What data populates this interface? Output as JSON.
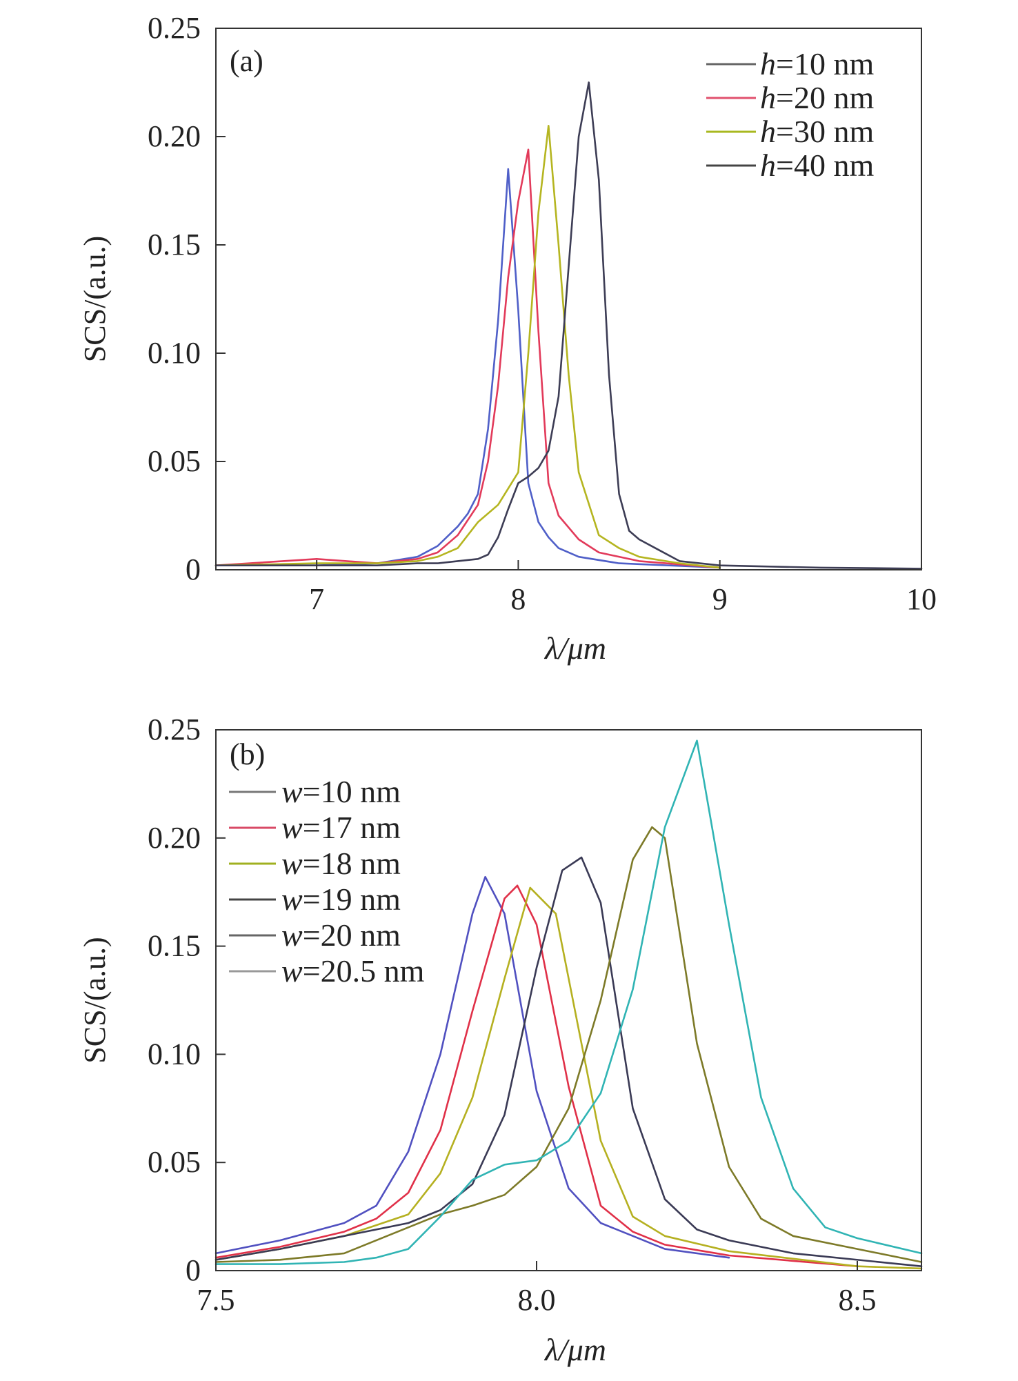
{
  "chart_data": [
    {
      "type": "line",
      "panel_label": "(a)",
      "xlabel": "λ/μm",
      "ylabel": "SCS/(a.u.)",
      "xlim": [
        6.5,
        10
      ],
      "ylim": [
        0,
        0.25
      ],
      "xticks": [
        7,
        8,
        9,
        10
      ],
      "xtick_labels": [
        "7",
        "8",
        "9",
        "10"
      ],
      "yticks": [
        0,
        0.05,
        0.1,
        0.15,
        0.2,
        0.25
      ],
      "ytick_labels": [
        "0",
        "0.05",
        "0.10",
        "0.15",
        "0.20",
        "0.25"
      ],
      "legend_position": "top-right",
      "series": [
        {
          "name": "h=10 nm",
          "legend_var": "h",
          "legend_rest": "=10 nm",
          "color": "#4f5fc8",
          "legend_color": "#666666",
          "x": [
            6.5,
            7.0,
            7.3,
            7.5,
            7.6,
            7.7,
            7.75,
            7.8,
            7.85,
            7.9,
            7.95,
            8.0,
            8.05,
            8.1,
            8.15,
            8.2,
            8.3,
            8.5,
            9.0
          ],
          "y": [
            0.002,
            0.002,
            0.003,
            0.006,
            0.011,
            0.02,
            0.026,
            0.035,
            0.065,
            0.115,
            0.185,
            0.12,
            0.04,
            0.022,
            0.015,
            0.01,
            0.006,
            0.003,
            0.001
          ]
        },
        {
          "name": "h=20 nm",
          "legend_var": "h",
          "legend_rest": "=20 nm",
          "color": "#e23a5a",
          "legend_color": "#e0506e",
          "x": [
            6.5,
            7.0,
            7.3,
            7.5,
            7.6,
            7.7,
            7.8,
            7.85,
            7.9,
            7.95,
            8.0,
            8.05,
            8.1,
            8.15,
            8.2,
            8.3,
            8.4,
            8.6,
            9.0
          ],
          "y": [
            0.002,
            0.005,
            0.003,
            0.005,
            0.008,
            0.016,
            0.03,
            0.05,
            0.085,
            0.135,
            0.17,
            0.194,
            0.11,
            0.04,
            0.025,
            0.014,
            0.008,
            0.004,
            0.001
          ]
        },
        {
          "name": "h=30 nm",
          "legend_var": "h",
          "legend_rest": "=30 nm",
          "color": "#b5b520",
          "legend_color": "#a8b820",
          "x": [
            6.5,
            7.0,
            7.3,
            7.5,
            7.6,
            7.7,
            7.8,
            7.9,
            8.0,
            8.05,
            8.1,
            8.15,
            8.2,
            8.25,
            8.3,
            8.4,
            8.5,
            8.6,
            8.8,
            9.0
          ],
          "y": [
            0.002,
            0.003,
            0.003,
            0.004,
            0.006,
            0.01,
            0.022,
            0.03,
            0.045,
            0.1,
            0.165,
            0.205,
            0.15,
            0.09,
            0.045,
            0.016,
            0.01,
            0.006,
            0.003,
            0.001
          ]
        },
        {
          "name": "h=40 nm",
          "legend_var": "h",
          "legend_rest": "=40 nm",
          "color": "#3d3d55",
          "legend_color": "#444444",
          "x": [
            6.5,
            7.0,
            7.3,
            7.5,
            7.6,
            7.7,
            7.8,
            7.85,
            7.9,
            7.95,
            8.0,
            8.05,
            8.1,
            8.15,
            8.2,
            8.25,
            8.3,
            8.35,
            8.4,
            8.45,
            8.5,
            8.55,
            8.6,
            8.7,
            8.8,
            9.0,
            9.5,
            10.0
          ],
          "y": [
            0.002,
            0.002,
            0.002,
            0.003,
            0.003,
            0.004,
            0.005,
            0.007,
            0.015,
            0.028,
            0.04,
            0.043,
            0.047,
            0.055,
            0.08,
            0.14,
            0.2,
            0.225,
            0.18,
            0.09,
            0.035,
            0.018,
            0.014,
            0.009,
            0.004,
            0.002,
            0.001,
            0.0005
          ]
        }
      ]
    },
    {
      "type": "line",
      "panel_label": "(b)",
      "xlabel": "λ/μm",
      "ylabel": "SCS/(a.u.)",
      "xlim": [
        7.5,
        8.6
      ],
      "ylim": [
        0,
        0.25
      ],
      "xticks": [
        7.5,
        8.0,
        8.5
      ],
      "xtick_labels": [
        "7.5",
        "8.0",
        "8.5"
      ],
      "yticks": [
        0,
        0.05,
        0.1,
        0.15,
        0.2,
        0.25
      ],
      "ytick_labels": [
        "0",
        "0.05",
        "0.10",
        "0.15",
        "0.20",
        "0.25"
      ],
      "legend_position": "top-left",
      "series": [
        {
          "name": "w=10 nm",
          "legend_var": "w",
          "legend_rest": "=10 nm",
          "color": "#5050c0",
          "legend_color": "#777777",
          "x": [
            7.5,
            7.6,
            7.7,
            7.75,
            7.8,
            7.85,
            7.9,
            7.92,
            7.95,
            8.0,
            8.05,
            8.1,
            8.2,
            8.3
          ],
          "y": [
            0.008,
            0.014,
            0.022,
            0.03,
            0.055,
            0.1,
            0.165,
            0.182,
            0.165,
            0.083,
            0.038,
            0.022,
            0.01,
            0.006
          ]
        },
        {
          "name": "w=17 nm",
          "legend_var": "w",
          "legend_rest": "=17 nm",
          "color": "#e03048",
          "legend_color": "#d84a66",
          "x": [
            7.5,
            7.6,
            7.7,
            7.75,
            7.8,
            7.85,
            7.9,
            7.95,
            7.97,
            8.0,
            8.05,
            8.1,
            8.15,
            8.2,
            8.3,
            8.5
          ],
          "y": [
            0.006,
            0.011,
            0.018,
            0.024,
            0.036,
            0.065,
            0.12,
            0.172,
            0.178,
            0.16,
            0.085,
            0.03,
            0.018,
            0.012,
            0.007,
            0.002
          ]
        },
        {
          "name": "w=18 nm",
          "legend_var": "w",
          "legend_rest": "=18 nm",
          "color": "#b5b020",
          "legend_color": "#a0b020",
          "x": [
            7.5,
            7.6,
            7.7,
            7.8,
            7.85,
            7.9,
            7.95,
            7.99,
            8.03,
            8.07,
            8.1,
            8.15,
            8.2,
            8.3,
            8.5,
            8.6
          ],
          "y": [
            0.005,
            0.01,
            0.016,
            0.026,
            0.045,
            0.08,
            0.135,
            0.177,
            0.165,
            0.105,
            0.06,
            0.025,
            0.016,
            0.009,
            0.002,
            0.001
          ]
        },
        {
          "name": "w=19 nm",
          "legend_var": "w",
          "legend_rest": "=19 nm",
          "color": "#3a3a55",
          "legend_color": "#444444",
          "x": [
            7.5,
            7.6,
            7.7,
            7.8,
            7.85,
            7.9,
            7.95,
            8.0,
            8.04,
            8.07,
            8.1,
            8.15,
            8.2,
            8.25,
            8.3,
            8.4,
            8.6
          ],
          "y": [
            0.005,
            0.01,
            0.016,
            0.022,
            0.028,
            0.04,
            0.072,
            0.14,
            0.185,
            0.191,
            0.17,
            0.075,
            0.033,
            0.019,
            0.014,
            0.008,
            0.002
          ]
        },
        {
          "name": "w=20 nm",
          "legend_var": "w",
          "legend_rest": "=20 nm",
          "color": "#7d7a28",
          "legend_color": "#666666",
          "x": [
            7.5,
            7.6,
            7.7,
            7.8,
            7.85,
            7.9,
            7.95,
            8.0,
            8.05,
            8.1,
            8.15,
            8.18,
            8.2,
            8.25,
            8.3,
            8.35,
            8.4,
            8.5,
            8.6
          ],
          "y": [
            0.004,
            0.005,
            0.008,
            0.02,
            0.026,
            0.03,
            0.035,
            0.048,
            0.075,
            0.125,
            0.19,
            0.205,
            0.2,
            0.105,
            0.048,
            0.024,
            0.016,
            0.01,
            0.004
          ]
        },
        {
          "name": "w=20.5 nm",
          "legend_var": "w",
          "legend_rest": "=20.5 nm",
          "color": "#30b4b4",
          "legend_color": "#999999",
          "x": [
            7.5,
            7.6,
            7.7,
            7.75,
            7.8,
            7.85,
            7.9,
            7.95,
            8.0,
            8.05,
            8.1,
            8.15,
            8.2,
            8.25,
            8.3,
            8.35,
            8.4,
            8.45,
            8.5,
            8.6
          ],
          "y": [
            0.003,
            0.003,
            0.004,
            0.006,
            0.01,
            0.025,
            0.042,
            0.049,
            0.051,
            0.06,
            0.082,
            0.13,
            0.205,
            0.245,
            0.16,
            0.08,
            0.038,
            0.02,
            0.015,
            0.008
          ]
        }
      ]
    }
  ]
}
